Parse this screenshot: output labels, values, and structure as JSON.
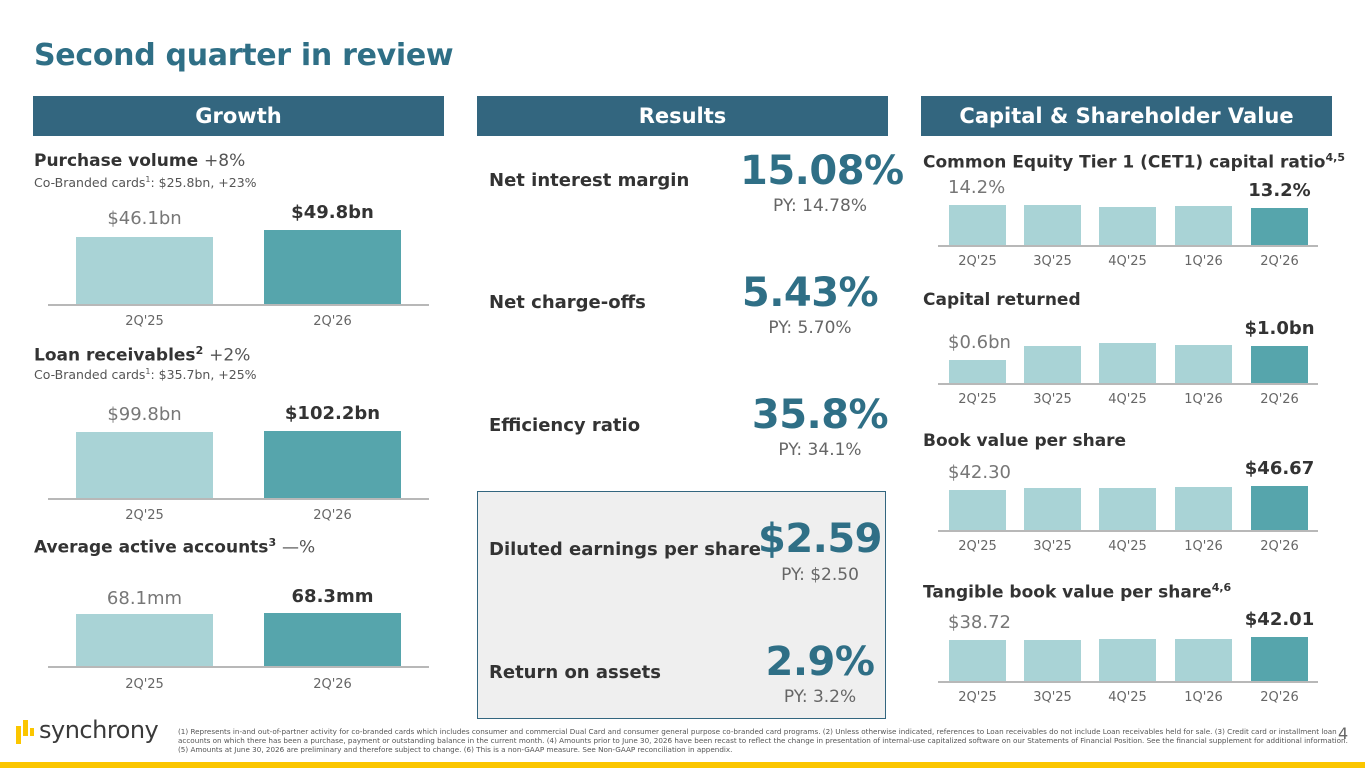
{
  "page_title": "Second quarter in review",
  "headers": {
    "growth": "Growth",
    "results": "Results",
    "capital": "Capital & Shareholder Value"
  },
  "growth": {
    "purchase": {
      "title": "Purchase volume",
      "delta": "+8%",
      "sub": "Co-Branded cards",
      "sub_sup": "1",
      "sub_rest": ": $25.8bn, +23%",
      "bars": [
        {
          "label": "2Q'25",
          "value": "$46.1bn",
          "amount": 46.1
        },
        {
          "label": "2Q'26",
          "value": "$49.8bn",
          "amount": 49.8
        }
      ]
    },
    "loans": {
      "title": "Loan receivables",
      "sup": "2",
      "delta": "+2%",
      "sub": "Co-Branded cards",
      "sub_sup": "1",
      "sub_rest": ": $35.7bn, +25%",
      "bars": [
        {
          "label": "2Q'25",
          "value": "$99.8bn",
          "amount": 99.8
        },
        {
          "label": "2Q'26",
          "value": "$102.2bn",
          "amount": 102.2
        }
      ]
    },
    "accounts": {
      "title": "Average active accounts",
      "sup": "3",
      "delta": "—%",
      "bars": [
        {
          "label": "2Q'25",
          "value": "68.1mm",
          "amount": 68.1
        },
        {
          "label": "2Q'26",
          "value": "68.3mm",
          "amount": 68.3
        }
      ]
    }
  },
  "results": {
    "nim": {
      "label": "Net interest margin",
      "value": "15.08%",
      "py": "PY: 14.78%"
    },
    "nco": {
      "label": "Net charge-offs",
      "value": "5.43%",
      "py": "PY: 5.70%"
    },
    "eff": {
      "label": "Efficiency ratio",
      "value": "35.8%",
      "py": "PY: 34.1%"
    },
    "eps": {
      "label": "Diluted earnings per share",
      "value": "$2.59",
      "py": "PY: $2.50"
    },
    "roa": {
      "label": "Return on assets",
      "value": "2.9%",
      "py": "PY: 3.2%"
    }
  },
  "capital": {
    "quarters": [
      "2Q'25",
      "3Q'25",
      "4Q'25",
      "1Q'26",
      "2Q'26"
    ],
    "cet1": {
      "title": "Common Equity Tier 1 (CET1) capital ratio",
      "sup": "4,5",
      "first": "14.2%",
      "last": "13.2%",
      "levels": [
        0.95,
        0.95,
        0.9,
        0.92,
        0.89
      ]
    },
    "returned": {
      "title": "Capital returned",
      "first": "$0.6bn",
      "last": "$1.0bn",
      "levels": [
        0.58,
        0.92,
        1.0,
        0.95,
        0.92
      ]
    },
    "bvps": {
      "title": "Book value per share",
      "first": "$42.30",
      "last": "$46.67",
      "levels": [
        0.92,
        0.96,
        0.96,
        0.98,
        1.0
      ]
    },
    "tbvps": {
      "title": "Tangible book value per share",
      "sup": "4,6",
      "first": "$38.72",
      "last": "$42.01",
      "levels": [
        0.94,
        0.94,
        0.96,
        0.96,
        1.0
      ]
    }
  },
  "footnote": "(1) Represents in-and out-of-partner activity for co-branded cards which includes consumer and commercial Dual Card and consumer general purpose co-branded card programs. (2) Unless otherwise indicated, references to Loan receivables do not include Loan receivables held for sale. (3) Credit card or installment loan accounts on which there has been a purchase, payment or outstanding balance in the current month. (4) Amounts prior to June 30, 2026 have been recast to reflect the change in presentation of internal-use capitalized software on our Statements of Financial Position. See the financial supplement for additional information. (5) Amounts at June 30, 2026 are preliminary and therefore subject to change. (6) This is a non-GAAP measure. See Non-GAAP reconciliation in appendix.",
  "logo_text": "synchrony",
  "page_number": "4",
  "colors": {
    "header": "#33667f",
    "title": "#2f6f86",
    "bar_light": "#a9d3d6",
    "bar_dark": "#56a5ac",
    "accent": "#fbc600"
  }
}
